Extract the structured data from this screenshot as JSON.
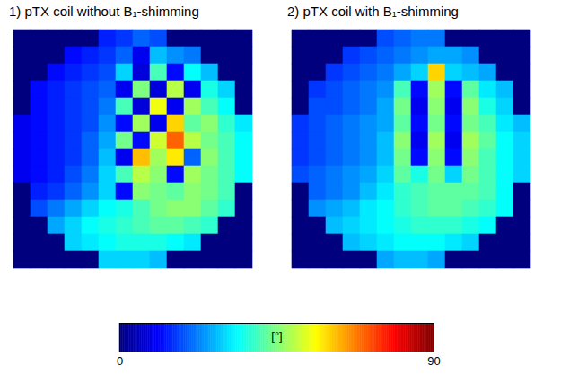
{
  "chart_data": {
    "type": "heatmap",
    "panels": [
      {
        "title": "1) pTX coil without B₁-shimming",
        "cells": [
          [
            0,
            0,
            0,
            0,
            0,
            14,
            16,
            20,
            18,
            0,
            0,
            0,
            0,
            0
          ],
          [
            0,
            0,
            0,
            12,
            14,
            16,
            20,
            10,
            28,
            24,
            22,
            0,
            0,
            0
          ],
          [
            0,
            0,
            12,
            14,
            16,
            18,
            30,
            8,
            40,
            12,
            34,
            28,
            0,
            0
          ],
          [
            0,
            12,
            14,
            16,
            18,
            20,
            10,
            45,
            8,
            50,
            10,
            36,
            30,
            0
          ],
          [
            0,
            12,
            14,
            16,
            18,
            22,
            40,
            8,
            55,
            10,
            48,
            40,
            34,
            0
          ],
          [
            10,
            12,
            14,
            16,
            18,
            24,
            12,
            48,
            10,
            60,
            42,
            46,
            38,
            32
          ],
          [
            10,
            12,
            14,
            16,
            20,
            26,
            44,
            12,
            52,
            70,
            50,
            44,
            40,
            34
          ],
          [
            10,
            12,
            14,
            16,
            20,
            28,
            10,
            62,
            48,
            58,
            20,
            46,
            40,
            34
          ],
          [
            10,
            12,
            14,
            18,
            22,
            30,
            40,
            50,
            46,
            12,
            48,
            44,
            40,
            34
          ],
          [
            0,
            14,
            16,
            20,
            24,
            30,
            12,
            46,
            44,
            42,
            46,
            44,
            40,
            0
          ],
          [
            0,
            18,
            22,
            26,
            30,
            34,
            36,
            40,
            44,
            46,
            46,
            42,
            38,
            0
          ],
          [
            0,
            0,
            26,
            30,
            34,
            36,
            38,
            40,
            42,
            42,
            40,
            38,
            0,
            0
          ],
          [
            0,
            0,
            0,
            30,
            32,
            34,
            36,
            36,
            36,
            34,
            32,
            0,
            0,
            0
          ],
          [
            0,
            0,
            0,
            0,
            0,
            30,
            30,
            30,
            28,
            0,
            0,
            0,
            0,
            0
          ]
        ]
      },
      {
        "title": "2) pTX coil with B₁-shimming",
        "cells": [
          [
            0,
            0,
            0,
            0,
            0,
            18,
            20,
            22,
            22,
            0,
            0,
            0,
            0,
            0
          ],
          [
            0,
            0,
            0,
            16,
            18,
            20,
            22,
            24,
            26,
            26,
            24,
            0,
            0,
            0
          ],
          [
            0,
            0,
            16,
            18,
            20,
            22,
            26,
            30,
            60,
            30,
            28,
            26,
            0,
            0
          ],
          [
            0,
            16,
            18,
            20,
            22,
            24,
            40,
            12,
            48,
            12,
            42,
            32,
            28,
            0
          ],
          [
            0,
            18,
            18,
            20,
            22,
            26,
            44,
            10,
            46,
            10,
            46,
            36,
            30,
            0
          ],
          [
            16,
            18,
            20,
            22,
            24,
            26,
            42,
            12,
            44,
            12,
            44,
            40,
            32,
            28
          ],
          [
            16,
            18,
            20,
            22,
            24,
            28,
            46,
            10,
            48,
            10,
            48,
            42,
            34,
            30
          ],
          [
            16,
            18,
            20,
            22,
            24,
            28,
            44,
            12,
            46,
            12,
            46,
            40,
            34,
            30
          ],
          [
            18,
            20,
            22,
            24,
            26,
            30,
            42,
            36,
            44,
            30,
            44,
            40,
            34,
            30
          ],
          [
            0,
            20,
            22,
            24,
            28,
            32,
            38,
            40,
            42,
            42,
            42,
            40,
            34,
            0
          ],
          [
            0,
            24,
            26,
            28,
            32,
            34,
            38,
            40,
            42,
            42,
            40,
            38,
            34,
            0
          ],
          [
            0,
            0,
            28,
            30,
            32,
            34,
            36,
            38,
            38,
            38,
            36,
            34,
            0,
            0
          ],
          [
            0,
            0,
            0,
            28,
            30,
            32,
            34,
            34,
            34,
            32,
            30,
            0,
            0,
            0
          ],
          [
            0,
            0,
            0,
            0,
            0,
            26,
            28,
            28,
            26,
            0,
            0,
            0,
            0,
            0
          ]
        ]
      }
    ],
    "colorbar": {
      "label": "[°]",
      "range": [
        0,
        90
      ],
      "ticks": [
        0,
        90
      ]
    }
  }
}
